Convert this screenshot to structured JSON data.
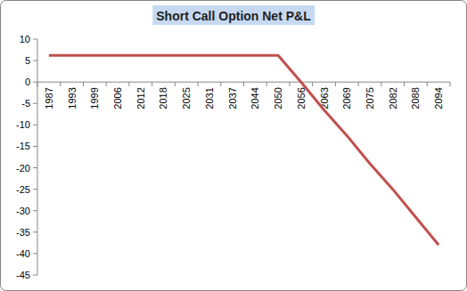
{
  "chart_data": {
    "type": "line",
    "title": "Short Call Option Net P&L",
    "categories": [
      "1987",
      "1993",
      "1999",
      "2006",
      "2012",
      "2018",
      "2025",
      "2031",
      "2037",
      "2044",
      "2050",
      "2056",
      "2063",
      "2069",
      "2075",
      "2082",
      "2088",
      "2094"
    ],
    "values": [
      6.2,
      6.2,
      6.2,
      6.2,
      6.2,
      6.2,
      6.2,
      6.2,
      6.2,
      6.2,
      6.2,
      0,
      -6.5,
      -12.5,
      -19,
      -25,
      -31.5,
      -38
    ],
    "color": "#c0504d",
    "ylim": [
      -45,
      10
    ],
    "yticks": [
      -45,
      -40,
      -35,
      -30,
      -25,
      -20,
      -15,
      -10,
      -5,
      0,
      5,
      10
    ],
    "grid": false
  }
}
